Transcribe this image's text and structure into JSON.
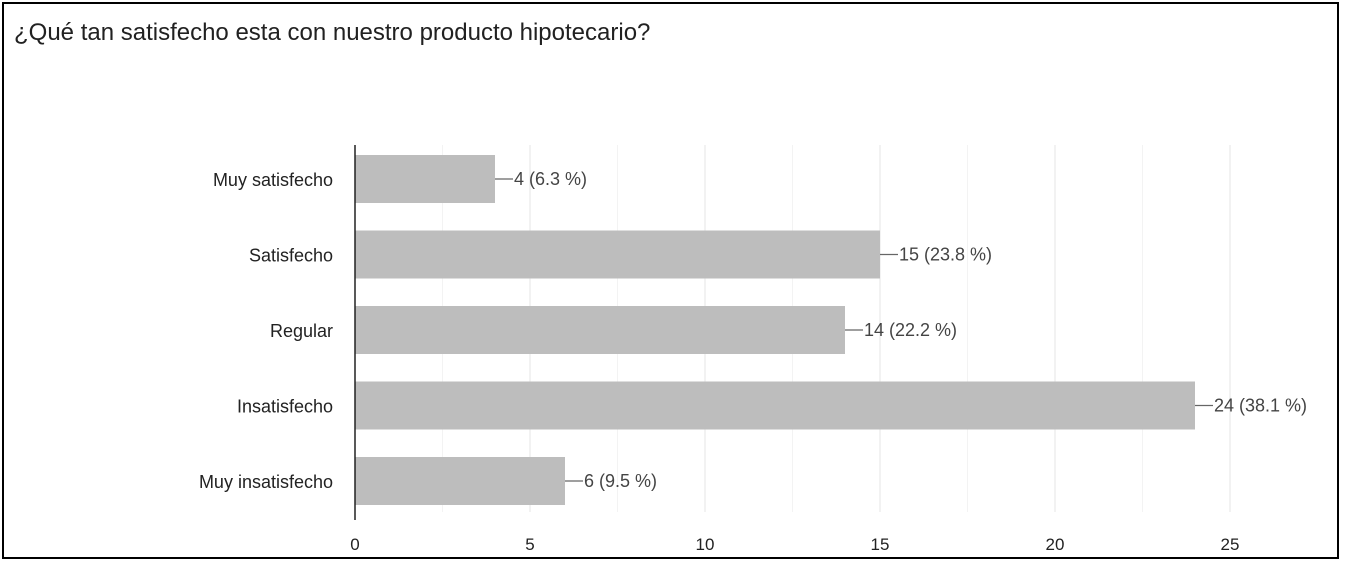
{
  "chart_data": {
    "type": "bar",
    "orientation": "horizontal",
    "title": "¿Qué tan satisfecho esta con nuestro producto hipotecario?",
    "categories": [
      "Muy satisfecho",
      "Satisfecho",
      "Regular",
      "Insatisfecho",
      "Muy insatisfecho"
    ],
    "values": [
      4,
      15,
      14,
      24,
      6
    ],
    "data_labels": [
      "4 (6.3 %)",
      "15 (23.8 %)",
      "14 (22.2 %)",
      "24 (38.1 %)",
      "6 (9.5 %)"
    ],
    "xlim": [
      0,
      25
    ],
    "xticks": [
      0,
      5,
      10,
      15,
      20,
      25
    ],
    "grid": true,
    "bar_color": "#bdbdbd"
  }
}
